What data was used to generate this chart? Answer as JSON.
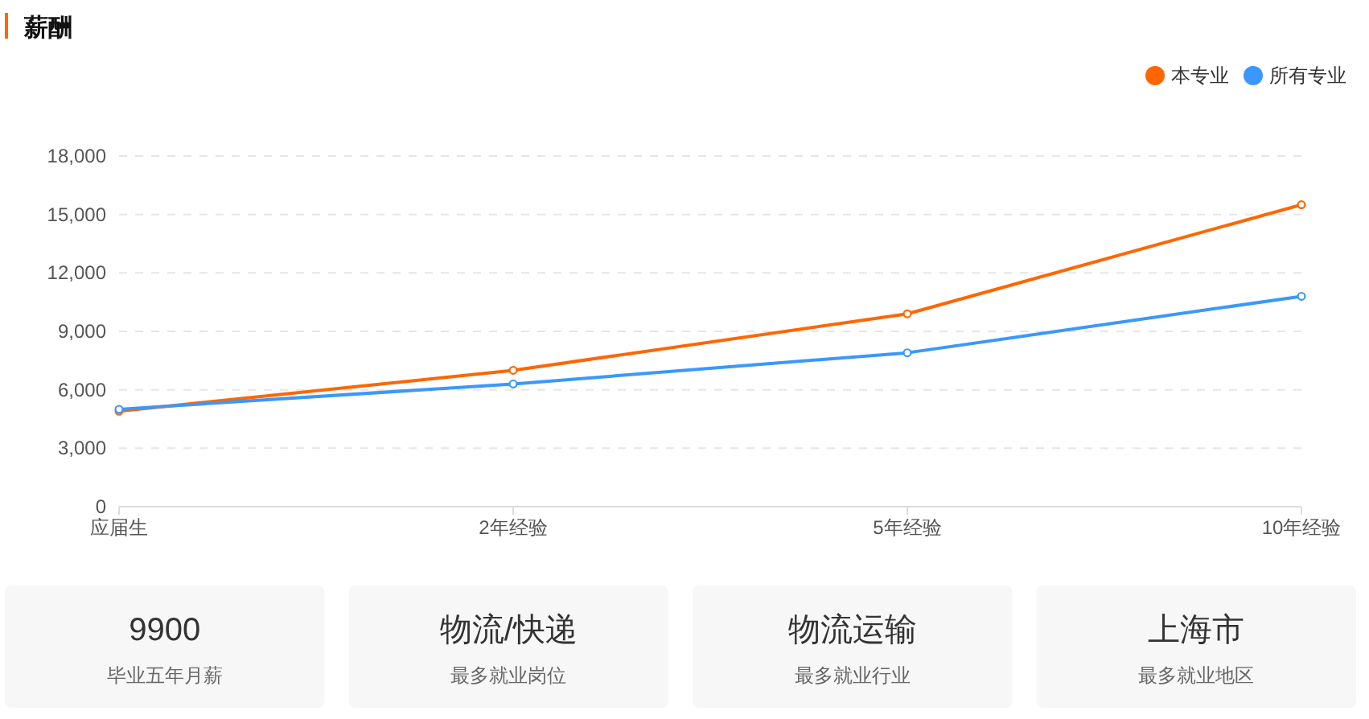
{
  "chart_data": [
    {
      "type": "line",
      "title": "薪酬",
      "categories": [
        "应届生",
        "2年经验",
        "5年经验",
        "10年经验"
      ],
      "series": [
        {
          "name": "本专业",
          "color": "#ff6600",
          "values": [
            4900,
            7000,
            9900,
            15500
          ]
        },
        {
          "name": "所有专业",
          "color": "#3a98fc",
          "values": [
            5000,
            6300,
            7900,
            10800
          ]
        }
      ],
      "ylim": [
        0,
        18000
      ],
      "yticks": [
        0,
        {
          "value": 3000,
          "label": "3,000"
        },
        {
          "value": 6000,
          "label": "6,000"
        },
        {
          "value": 9000,
          "label": "9,000"
        },
        {
          "value": 12000,
          "label": "12,000"
        },
        {
          "value": 15000,
          "label": "15,000"
        },
        {
          "value": 18000,
          "label": "18,000"
        }
      ],
      "grid": "y",
      "legend": "top right",
      "marker": "circle",
      "line_style": "solid"
    },
    {
      "type": "other",
      "title": "9900",
      "subtitle": "毕业五年月薪"
    },
    {
      "type": "other",
      "title": "物流/快递",
      "subtitle": "最多就业岗位"
    },
    {
      "type": "other",
      "title": "物流运输",
      "subtitle": "最多就业行业"
    },
    {
      "type": "other",
      "title": "上海市",
      "subtitle": "最多就业地区"
    }
  ]
}
